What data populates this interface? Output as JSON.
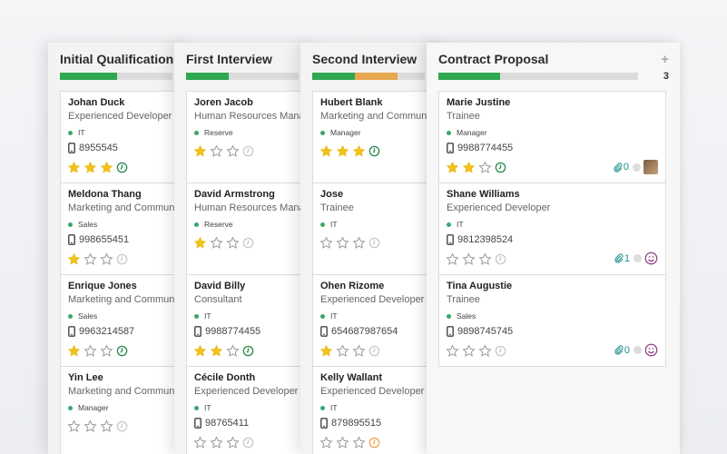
{
  "columns": [
    {
      "title": "Initial Qualification",
      "progress": [
        {
          "fraction": 0.51,
          "color": "#2fa84f"
        }
      ],
      "cards": [
        {
          "name": "Johan Duck",
          "job": "Experienced Developer",
          "tag": "IT",
          "phone": "8955545",
          "stars": 3,
          "clock": "green"
        },
        {
          "name": "Meldona Thang",
          "job": "Marketing and Communi",
          "tag": "Sales",
          "phone": "998655451",
          "stars": 1,
          "clock": "grey"
        },
        {
          "name": "Enrique Jones",
          "job": "Marketing and Communi",
          "tag": "Sales",
          "phone": "9963214587",
          "stars": 1,
          "clock": "green"
        },
        {
          "name": "Yin Lee",
          "job": "Marketing and Communi",
          "tag": "Manager",
          "phone": "",
          "stars": 0,
          "clock": "grey"
        }
      ]
    },
    {
      "title": "First Interview",
      "progress": [
        {
          "fraction": 0.38,
          "color": "#2fa84f"
        }
      ],
      "cards": [
        {
          "name": "Joren Jacob",
          "job": "Human Resources Mana",
          "tag": "Reserve",
          "phone": "",
          "stars": 1,
          "clock": "grey"
        },
        {
          "name": "David Armstrong",
          "job": "Human Resources Mana",
          "tag": "Reserve",
          "phone": "",
          "stars": 1,
          "clock": "grey"
        },
        {
          "name": "David Billy",
          "job": "Consultant",
          "tag": "IT",
          "phone": "9988774455",
          "stars": 2,
          "clock": "green"
        },
        {
          "name": "Cécile Donth",
          "job": "Experienced Developer",
          "tag": "IT",
          "phone": "98765411",
          "stars": 0,
          "clock": "grey"
        }
      ]
    },
    {
      "title": "Second Interview",
      "progress": [
        {
          "fraction": 0.38,
          "color": "#2fa84f"
        },
        {
          "fraction": 0.38,
          "color": "#e8a84f"
        }
      ],
      "cards": [
        {
          "name": "Hubert Blank",
          "job": "Marketing and Communi",
          "tag": "Manager",
          "phone": "",
          "stars": 3,
          "clock": "green"
        },
        {
          "name": "Jose",
          "job": "Trainee",
          "tag": "IT",
          "phone": "",
          "stars": 0,
          "clock": "grey"
        },
        {
          "name": "Ohen Rizome",
          "job": "Experienced Developer",
          "tag": "IT",
          "phone": "654687987654",
          "stars": 1,
          "clock": "grey"
        },
        {
          "name": "Kelly Wallant",
          "job": "Experienced Developer",
          "tag": "IT",
          "phone": "879895515",
          "stars": 0,
          "clock": "orange"
        }
      ]
    },
    {
      "title": "Contract Proposal",
      "count": "3",
      "progress": [
        {
          "fraction": 0.31,
          "color": "#2fa84f"
        }
      ],
      "cards": [
        {
          "name": "Marie Justine",
          "job": "Trainee",
          "tag": "Manager",
          "phone": "9988774455",
          "stars": 2,
          "clock": "green",
          "attachments": "0",
          "extra": "avatar"
        },
        {
          "name": "Shane Williams",
          "job": "Experienced Developer",
          "tag": "IT",
          "phone": "9812398524",
          "stars": 0,
          "clock": "grey",
          "attachments": "1",
          "extra": "smile"
        },
        {
          "name": "Tina Augustie",
          "job": "Trainee",
          "tag": "Sales",
          "phone": "9898745745",
          "stars": 0,
          "clock": "grey",
          "attachments": "0",
          "extra": "smile"
        }
      ]
    }
  ],
  "colors": {
    "star_on": "#f2c318",
    "star_off": "#9a9a9a",
    "clock_green": "#2a8a4a",
    "clock_orange": "#e8a84f",
    "clock_grey": "#c9c9c9"
  },
  "icons": {
    "star": "star-icon",
    "clock": "clock-icon",
    "phone": "phone-icon",
    "paperclip": "paperclip-icon",
    "plus": "plus-icon"
  }
}
